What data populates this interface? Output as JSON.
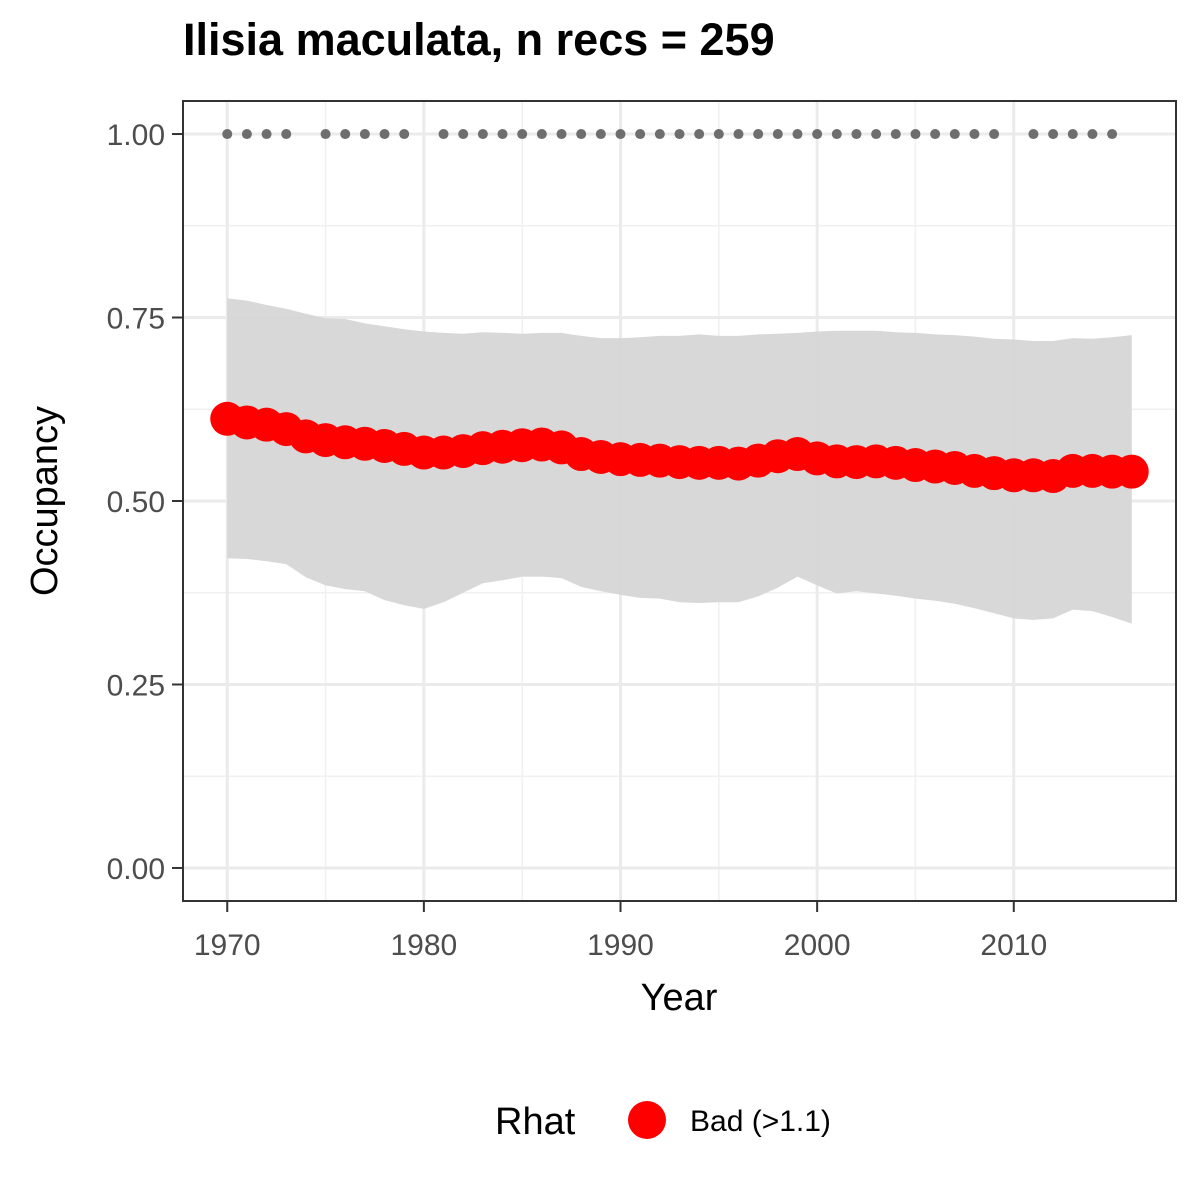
{
  "chart_data": {
    "type": "line",
    "title": "Ilisia maculata, n recs = 259",
    "xlabel": "Year",
    "ylabel": "Occupancy",
    "xlim": [
      1967.75,
      2018.25
    ],
    "ylim": [
      -0.045,
      1.045
    ],
    "x_ticks": [
      1970,
      1980,
      1990,
      2000,
      2010
    ],
    "y_ticks": [
      0.0,
      0.25,
      0.5,
      0.75,
      1.0
    ],
    "y_tick_labels": [
      "0.00",
      "0.25",
      "0.50",
      "0.75",
      "1.00"
    ],
    "grid": true,
    "legend": {
      "position": "bottom",
      "title": "Rhat",
      "entries": [
        {
          "label": "Bad (>1.1)",
          "color": "#ff0000"
        }
      ]
    },
    "colors": {
      "series": "#ff0000",
      "band": "#d6d6d6",
      "records": "#6e6e6e"
    },
    "x": [
      1970,
      1971,
      1972,
      1973,
      1974,
      1975,
      1976,
      1977,
      1978,
      1979,
      1980,
      1981,
      1982,
      1983,
      1984,
      1985,
      1986,
      1987,
      1988,
      1989,
      1990,
      1991,
      1992,
      1993,
      1994,
      1995,
      1996,
      1997,
      1998,
      1999,
      2000,
      2001,
      2002,
      2003,
      2004,
      2005,
      2006,
      2007,
      2008,
      2009,
      2010,
      2011,
      2012,
      2013,
      2014,
      2015,
      2016
    ],
    "series": [
      {
        "values": [
          0.612,
          0.607,
          0.604,
          0.598,
          0.588,
          0.583,
          0.58,
          0.578,
          0.575,
          0.571,
          0.566,
          0.566,
          0.568,
          0.572,
          0.574,
          0.576,
          0.577,
          0.573,
          0.564,
          0.56,
          0.557,
          0.556,
          0.555,
          0.553,
          0.552,
          0.552,
          0.551,
          0.555,
          0.561,
          0.564,
          0.558,
          0.554,
          0.553,
          0.554,
          0.552,
          0.549,
          0.547,
          0.545,
          0.541,
          0.538,
          0.535,
          0.535,
          0.534,
          0.541,
          0.541,
          0.54,
          0.54
        ],
        "lower": [
          0.422,
          0.421,
          0.418,
          0.414,
          0.396,
          0.385,
          0.38,
          0.377,
          0.365,
          0.358,
          0.353,
          0.362,
          0.375,
          0.388,
          0.392,
          0.397,
          0.397,
          0.395,
          0.383,
          0.377,
          0.372,
          0.368,
          0.367,
          0.362,
          0.361,
          0.362,
          0.362,
          0.37,
          0.382,
          0.397,
          0.385,
          0.374,
          0.377,
          0.374,
          0.371,
          0.367,
          0.364,
          0.36,
          0.354,
          0.347,
          0.34,
          0.338,
          0.34,
          0.352,
          0.35,
          0.342,
          0.333
        ],
        "upper": [
          0.776,
          0.773,
          0.767,
          0.762,
          0.755,
          0.749,
          0.748,
          0.742,
          0.738,
          0.734,
          0.731,
          0.729,
          0.728,
          0.73,
          0.729,
          0.728,
          0.729,
          0.729,
          0.725,
          0.722,
          0.722,
          0.723,
          0.725,
          0.725,
          0.727,
          0.725,
          0.725,
          0.727,
          0.728,
          0.729,
          0.731,
          0.732,
          0.732,
          0.732,
          0.73,
          0.729,
          0.727,
          0.726,
          0.724,
          0.721,
          0.72,
          0.718,
          0.718,
          0.722,
          0.721,
          0.723,
          0.726
        ]
      }
    ],
    "record_years": [
      1970,
      1971,
      1972,
      1973,
      1975,
      1976,
      1977,
      1978,
      1979,
      1981,
      1982,
      1983,
      1984,
      1985,
      1986,
      1987,
      1988,
      1989,
      1990,
      1991,
      1992,
      1993,
      1994,
      1995,
      1996,
      1997,
      1998,
      1999,
      2000,
      2001,
      2002,
      2003,
      2004,
      2005,
      2006,
      2007,
      2008,
      2009,
      2011,
      2012,
      2013,
      2014,
      2015
    ],
    "record_value": 1.0
  }
}
